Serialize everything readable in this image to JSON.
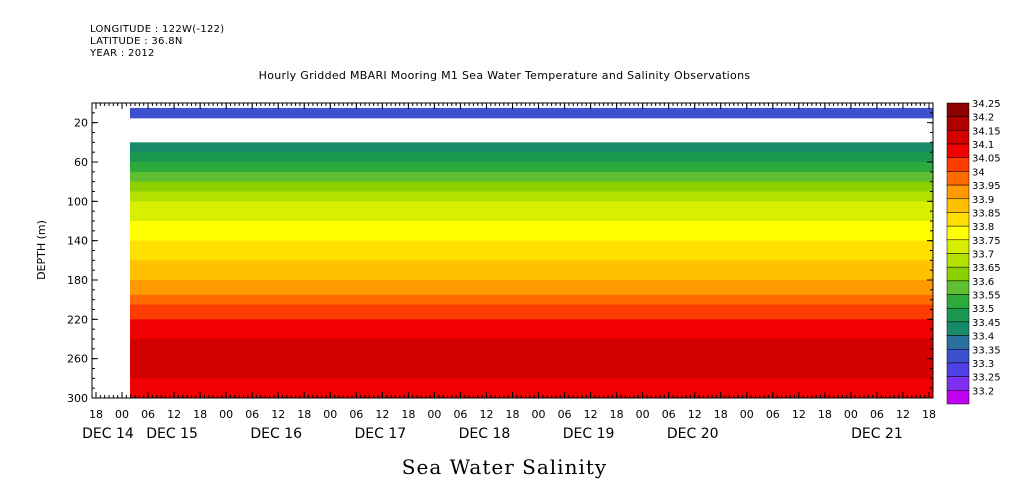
{
  "header": {
    "longitude": "LONGITUDE : 122W(-122)",
    "latitude": "LATITUDE : 36.8N",
    "year": "YEAR : 2012"
  },
  "chart_data": {
    "type": "heatmap",
    "title": "Hourly Gridded MBARI Mooring M1 Sea Water Temperature and Salinity Observations",
    "bottom_title": "Sea Water Salinity",
    "ylabel": "DEPTH (m)",
    "ylim": [
      300,
      0
    ],
    "y_ticks": [
      20,
      60,
      100,
      140,
      180,
      220,
      260,
      300
    ],
    "x_hour_ticks": [
      "18",
      "00",
      "06",
      "12",
      "18",
      "00",
      "06",
      "12",
      "18",
      "00",
      "06",
      "12",
      "18",
      "00",
      "06",
      "12",
      "18",
      "00",
      "06",
      "12",
      "18",
      "00",
      "06",
      "12",
      "18",
      "00",
      "06",
      "12",
      "18",
      "00",
      "06",
      "12",
      "18"
    ],
    "x_day_labels": [
      "DEC 14",
      "DEC 15",
      "DEC 16",
      "DEC 17",
      "DEC 18",
      "DEC 19",
      "DEC 20",
      "DEC 21"
    ],
    "colorbar_levels": [
      "34.25",
      "34.2",
      "34.15",
      "34.1",
      "34.05",
      "34",
      "33.95",
      "33.9",
      "33.85",
      "33.8",
      "33.75",
      "33.7",
      "33.65",
      "33.6",
      "33.55",
      "33.5",
      "33.45",
      "33.4",
      "33.35",
      "33.3",
      "33.25",
      "33.2"
    ],
    "colorbar_colors": [
      "#8b0000",
      "#b00000",
      "#d40000",
      "#f00000",
      "#ff3c00",
      "#ff6a00",
      "#ff9a00",
      "#ffc000",
      "#ffe000",
      "#ffff00",
      "#d8f000",
      "#b4e000",
      "#8cd000",
      "#5ec030",
      "#2eaa3c",
      "#1a9850",
      "#178a68",
      "#2a6fa0",
      "#3c50d0",
      "#5040e8",
      "#8030f0",
      "#c000f0"
    ],
    "depth_profile": [
      {
        "depth": 10,
        "salinity": 33.35
      },
      {
        "depth": 40,
        "salinity": 33.45
      },
      {
        "depth": 60,
        "salinity": 33.55
      },
      {
        "depth": 100,
        "salinity": 33.75
      },
      {
        "depth": 140,
        "salinity": 33.85
      },
      {
        "depth": 180,
        "salinity": 33.95
      },
      {
        "depth": 220,
        "salinity": 34.1
      },
      {
        "depth": 260,
        "salinity": 34.2
      },
      {
        "depth": 300,
        "salinity": 34.1
      }
    ],
    "missing_depth_range": [
      14,
      38
    ]
  }
}
